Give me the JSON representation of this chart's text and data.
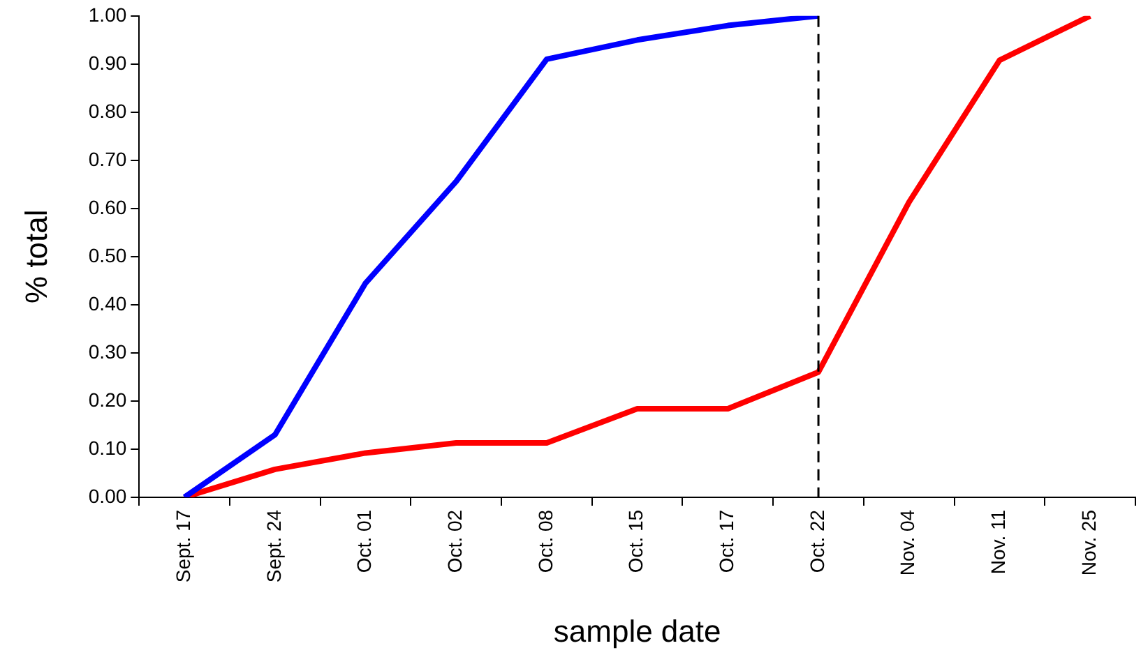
{
  "chart_data": {
    "type": "line",
    "xlabel": "sample date",
    "ylabel": "% total",
    "categories": [
      "Sept. 17",
      "Sept. 24",
      "Oct. 01",
      "Oct. 02",
      "Oct. 08",
      "Oct. 15",
      "Oct. 17",
      "Oct. 22",
      "Nov. 04",
      "Nov. 11",
      "Nov. 25"
    ],
    "series": [
      {
        "color": "#0000ff",
        "values": [
          0.0,
          0.13,
          0.445,
          0.656,
          0.91,
          0.95,
          0.98,
          1.0,
          null,
          null,
          null
        ]
      },
      {
        "color": "#ff0000",
        "values": [
          0.0,
          0.058,
          0.092,
          0.113,
          0.113,
          0.184,
          0.184,
          0.26,
          0.613,
          0.908,
          1.0
        ]
      }
    ],
    "ylim": [
      0,
      1
    ],
    "yticks": [
      {
        "value": 0,
        "label": "0.00"
      },
      {
        "value": 0.1,
        "label": "0.10"
      },
      {
        "value": 0.2,
        "label": "0.20"
      },
      {
        "value": 0.3,
        "label": "0.30"
      },
      {
        "value": 0.4,
        "label": "0.40"
      },
      {
        "value": 0.5,
        "label": "0.50"
      },
      {
        "value": 0.6,
        "label": "0.60"
      },
      {
        "value": 0.7,
        "label": "0.70"
      },
      {
        "value": 0.8,
        "label": "0.80"
      },
      {
        "value": 0.9,
        "label": "0.90"
      },
      {
        "value": 1,
        "label": "1.00"
      }
    ],
    "ref_lines": [
      {
        "axis": "x",
        "value": "Oct. 22",
        "color": "#000000",
        "line_style": "dashed"
      }
    ],
    "grid": false,
    "legend": false,
    "marker": "none",
    "line_style": "solid"
  }
}
